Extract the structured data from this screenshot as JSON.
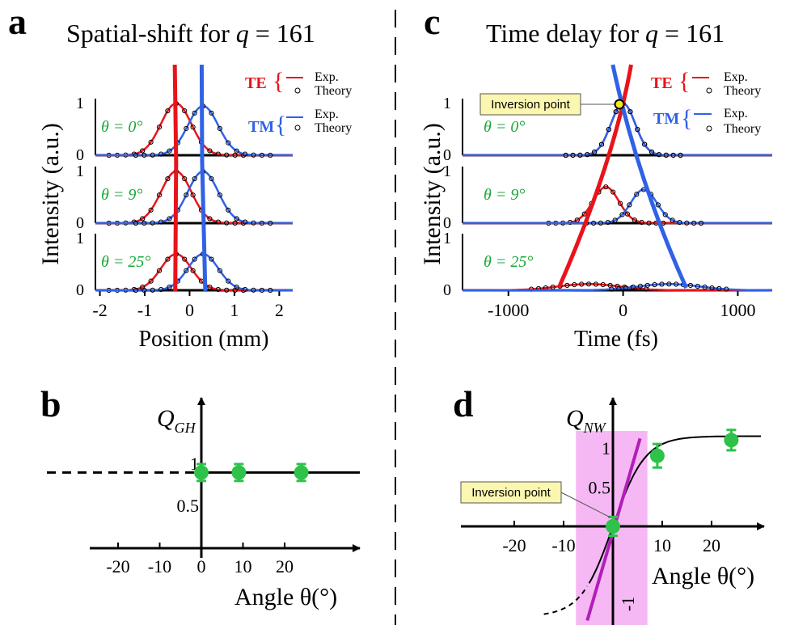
{
  "colors": {
    "te": "#e8141c",
    "tm": "#2f62e6",
    "green": "#1aa83a",
    "marker": "#2ec24a",
    "purple": "#b01fb8",
    "shade": "#f6b8f4",
    "callout": "#fbf6b0"
  },
  "panels": {
    "a": {
      "letter": "a",
      "title_prefix": "Spatial-shift for ",
      "title_var": "q",
      "title_suffix": " = 161",
      "ylabel": "Intensity (a.u.)",
      "xlabel": "Position (mm)",
      "xticks": [
        "-2",
        "-1",
        "0",
        "1",
        "2"
      ],
      "angles": [
        "θ = 0°",
        "θ = 9°",
        "θ = 25°"
      ],
      "yt1": "1",
      "yt0": "0",
      "te_label": "TE",
      "tm_label": "TM",
      "legend_exp": "Exp.",
      "legend_theory": "Theory"
    },
    "c": {
      "letter": "c",
      "title_prefix": "Time delay for ",
      "title_var": "q",
      "title_suffix": " = 161",
      "ylabel": "Intensity (a.u.)",
      "xlabel": "Time (fs)",
      "xticks": [
        "-1000",
        "0",
        "1000"
      ],
      "angles": [
        "θ = 0°",
        "θ = 9°",
        "θ = 25°"
      ],
      "yt1": "1",
      "yt0": "0",
      "te_label": "TE",
      "tm_label": "TM",
      "legend_exp": "Exp.",
      "legend_theory": "Theory",
      "callout": "Inversion point"
    },
    "b": {
      "letter": "b",
      "qlabel": "Q",
      "qsub": "GH",
      "xticks": [
        "-20",
        "-10",
        "0",
        "10",
        "20"
      ],
      "yticks": [
        "1",
        "0.5"
      ],
      "xlabel": "Angle θ(°)"
    },
    "d": {
      "letter": "d",
      "qlabel": "Q",
      "qsub": "NW",
      "xticks": [
        "-20",
        "-10",
        "10",
        "20"
      ],
      "yticks": [
        "1",
        "0.5",
        "-1"
      ],
      "xlabel": "Angle θ(°)",
      "callout": "Inversion point"
    }
  },
  "chart_data": [
    {
      "type": "line",
      "panel": "a",
      "title": "Spatial-shift for q = 161",
      "xlabel": "Position (mm)",
      "ylabel": "Intensity (a.u.)",
      "xlim": [
        -2,
        2.3
      ],
      "series": [
        {
          "name": "TE",
          "angle": 0,
          "center": -0.3,
          "peak": 1.0
        },
        {
          "name": "TM",
          "angle": 0,
          "center": 0.3,
          "peak": 0.95
        },
        {
          "name": "TE",
          "angle": 9,
          "center": -0.3,
          "peak": 1.0
        },
        {
          "name": "TM",
          "angle": 9,
          "center": 0.3,
          "peak": 1.0
        },
        {
          "name": "TE",
          "angle": 25,
          "center": -0.3,
          "peak": 0.7
        },
        {
          "name": "TM",
          "angle": 25,
          "center": 0.3,
          "peak": 0.7
        }
      ]
    },
    {
      "type": "line",
      "panel": "c",
      "title": "Time delay for q = 161",
      "xlabel": "Time (fs)",
      "ylabel": "Intensity (a.u.)",
      "xlim": [
        -1400,
        1300
      ],
      "series": [
        {
          "name": "TE",
          "angle": 0,
          "center": 0,
          "peak": 1.0
        },
        {
          "name": "TM",
          "angle": 0,
          "center": 0,
          "peak": 1.0
        },
        {
          "name": "TE",
          "angle": 9,
          "center": -150,
          "peak": 0.7
        },
        {
          "name": "TM",
          "angle": 9,
          "center": 180,
          "peak": 0.65
        },
        {
          "name": "TE",
          "angle": 25,
          "center": -300,
          "peak": 0.12
        },
        {
          "name": "TM",
          "angle": 25,
          "center": 400,
          "peak": 0.12
        }
      ]
    },
    {
      "type": "scatter",
      "panel": "b",
      "xlabel": "Angle θ(°)",
      "ylabel": "Q_GH",
      "x": [
        0,
        9,
        24
      ],
      "y": [
        0.9,
        0.9,
        0.9
      ],
      "err": [
        0.1,
        0.1,
        0.1
      ]
    },
    {
      "type": "scatter",
      "panel": "d",
      "xlabel": "Angle θ(°)",
      "ylabel": "Q_NW",
      "x": [
        0,
        9,
        24
      ],
      "y": [
        0.0,
        0.9,
        1.1
      ],
      "err": [
        0.12,
        0.15,
        0.13
      ]
    }
  ]
}
